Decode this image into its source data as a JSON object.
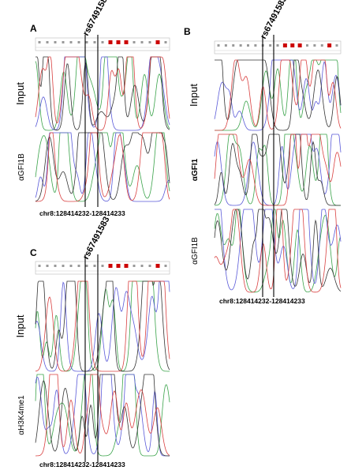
{
  "panels": [
    {
      "label": "A",
      "snp": "rs67491583",
      "tracks": [
        "Input",
        "αGFI1B"
      ],
      "coordinate": "chr8:128414232-128414233"
    },
    {
      "label": "B",
      "snp": "rs67491583",
      "tracks": [
        "Input",
        "αGFI1",
        "αGFI1B"
      ],
      "coordinate": "chr8:128414232-128414233"
    },
    {
      "label": "C",
      "snp": "rs67491583",
      "tracks": [
        "Input",
        "αH3K4me1"
      ],
      "coordinate": "chr8:128414232-128414233"
    }
  ]
}
